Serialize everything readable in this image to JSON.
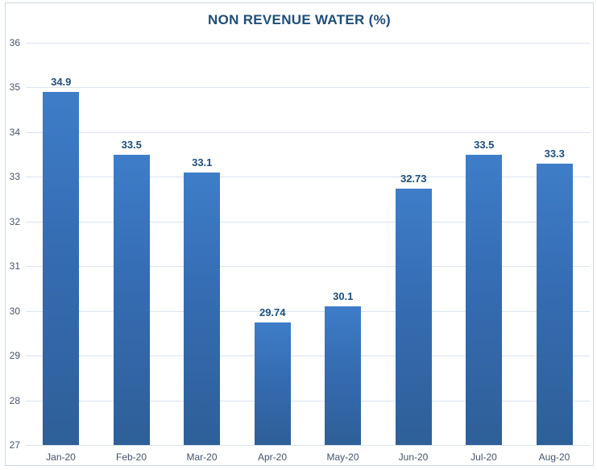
{
  "chart": {
    "title": "NON REVENUE WATER (%)"
  },
  "chart_data": {
    "type": "bar",
    "title": "NON REVENUE WATER (%)",
    "categories": [
      "Jan-20",
      "Feb-20",
      "Mar-20",
      "Apr-20",
      "May-20",
      "Jun-20",
      "Jul-20",
      "Aug-20"
    ],
    "values": [
      34.9,
      33.5,
      33.1,
      29.74,
      30.1,
      32.73,
      33.5,
      33.3
    ],
    "data_labels": [
      "34.9",
      "33.5",
      "33.1",
      "29.74",
      "30.1",
      "32.73",
      "33.5",
      "33.3"
    ],
    "xlabel": "",
    "ylabel": "",
    "ylim": [
      27,
      36
    ],
    "yticks": [
      36,
      35,
      34,
      33,
      32,
      31,
      30,
      29,
      28,
      27
    ],
    "grid": true,
    "legend": false,
    "colors": {
      "bar_gradient_top": "#3E7DC9",
      "bar_gradient_bottom": "#2E5F98",
      "title": "#1F4E79",
      "data_label": "#1F4E79",
      "axis_label": "#44546A",
      "gridline": "#DAE3EE",
      "frame_border": "#CDD9E5",
      "background": "#FFFFFF"
    }
  }
}
